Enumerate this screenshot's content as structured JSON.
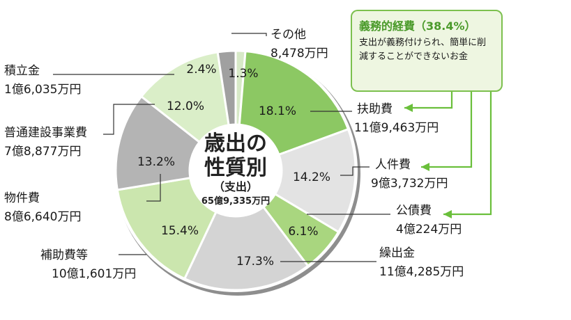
{
  "chart_data": {
    "type": "pie",
    "center_title_line1": "歳出の",
    "center_title_line2": "性質別",
    "center_subtitle": "（支出）",
    "center_total": "65億9,335万円",
    "slices": [
      {
        "name": "その他",
        "percent": 1.3,
        "percent_label": "1.3%",
        "amount": "8,478万円",
        "color": "#d7e9c7"
      },
      {
        "name": "扶助費",
        "percent": 18.1,
        "percent_label": "18.1%",
        "amount": "11億9,463万円",
        "color": "#8cc863"
      },
      {
        "name": "人件費",
        "percent": 14.2,
        "percent_label": "14.2%",
        "amount": "9億3,732万円",
        "color": "#e3e3e3"
      },
      {
        "name": "公債費",
        "percent": 6.1,
        "percent_label": "6.1%",
        "amount": "4億224万円",
        "color": "#a9d67f"
      },
      {
        "name": "繰出金",
        "percent": 17.3,
        "percent_label": "17.3%",
        "amount": "11億4,285万円",
        "color": "#d4d4d4"
      },
      {
        "name": "補助費等",
        "percent": 15.4,
        "percent_label": "15.4%",
        "amount": "10億1,601万円",
        "color": "#cbe6ae"
      },
      {
        "name": "物件費",
        "percent": 13.2,
        "percent_label": "13.2%",
        "amount": "8億6,640万円",
        "color": "#b4b4b4"
      },
      {
        "name": "普通建設事業費",
        "percent": 12.0,
        "percent_label": "12.0%",
        "amount": "7億8,877万円",
        "color": "#daeec8"
      },
      {
        "name": "積立金",
        "percent": 2.4,
        "percent_label": "2.4%",
        "amount": "1億6,035万円",
        "color": "#a0a0a0"
      }
    ]
  },
  "callout": {
    "title": "義務的経費（38.4%）",
    "body": "支出が義務付けられ、簡単に削減することができないお金"
  }
}
